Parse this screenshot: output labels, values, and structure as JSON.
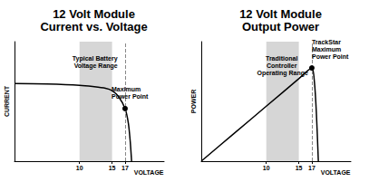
{
  "chart_data": [
    {
      "type": "line",
      "title": "12 Volt Module",
      "subtitle": "Current vs. Voltage",
      "xlabel": "VOLTAGE",
      "ylabel": "CURRENT",
      "x": [
        0,
        5,
        10,
        12,
        14,
        15,
        16,
        17,
        17.5,
        17.8,
        18
      ],
      "values": [
        65,
        64.5,
        63.5,
        62.5,
        61,
        59,
        54,
        44,
        32,
        16,
        0
      ],
      "color": "#000000",
      "xlim": [
        0,
        23
      ],
      "xticks": [
        10,
        15,
        17
      ],
      "ylim": [
        0,
        100
      ],
      "tick_labels": "x",
      "grid": false,
      "shaded_range": [
        10,
        15
      ],
      "shaded_label": "Typical Battery Voltage Range",
      "point": {
        "x": 17,
        "y": 44,
        "label": "Maximum Power Point"
      }
    },
    {
      "type": "line",
      "title": "12 Volt Module",
      "subtitle": "Output Power",
      "xlabel": "VOLTAGE",
      "ylabel": "POWER",
      "x": [
        0,
        5,
        10,
        15,
        16,
        17,
        17.4,
        17.7,
        18
      ],
      "values": [
        0,
        23,
        46,
        69,
        74,
        78,
        66,
        40,
        0
      ],
      "color": "#000000",
      "xlim": [
        0,
        23
      ],
      "xticks": [
        10,
        15,
        17
      ],
      "ylim": [
        0,
        100
      ],
      "tick_labels": "x",
      "grid": false,
      "shaded_range": [
        10,
        15
      ],
      "shaded_label": "Traditional Controller Operating Range",
      "point": {
        "x": 17,
        "y": 78,
        "label": "TrackStar Maximum Power Point"
      }
    }
  ]
}
